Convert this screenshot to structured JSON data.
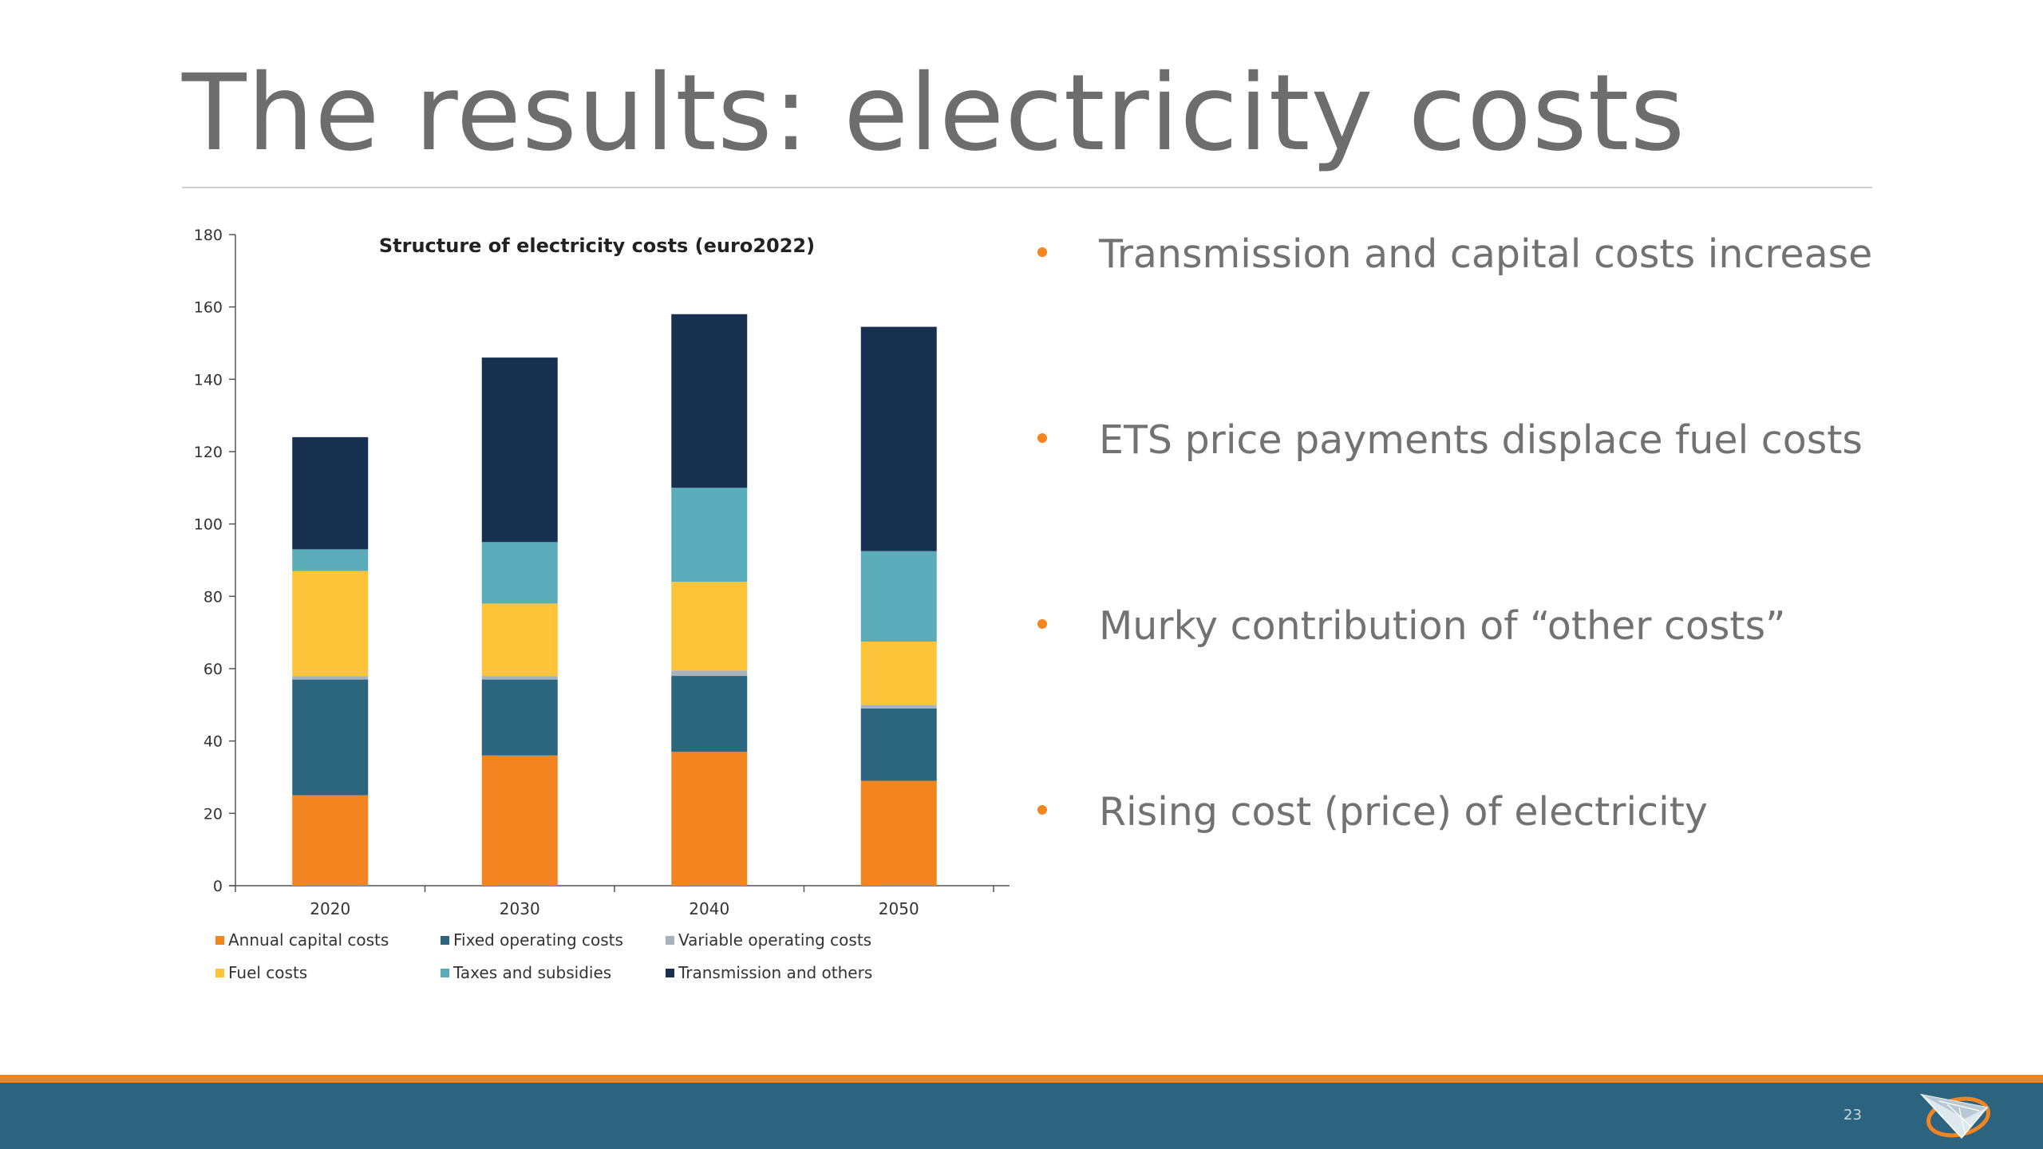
{
  "slide": {
    "title": "The results: electricity costs",
    "page_number": "23"
  },
  "bullets": [
    "Transmission and capital costs increase",
    "ETS price payments displace fuel costs",
    "Murky contribution of “other costs”",
    "Rising cost (price) of electricity"
  ],
  "colors": {
    "accent_orange": "#f28520",
    "footer_blue": "#2c6480"
  },
  "chart_data": {
    "type": "bar",
    "stacked": true,
    "title": "Structure of electricity costs (euro2022)",
    "xlabel": "",
    "ylabel": "",
    "categories": [
      "2020",
      "2030",
      "2040",
      "2050"
    ],
    "ylim": [
      0,
      180
    ],
    "yticks": [
      0,
      20,
      40,
      60,
      80,
      100,
      120,
      140,
      160,
      180
    ],
    "grid": false,
    "legend_position": "bottom",
    "series": [
      {
        "name": "Annual capital costs",
        "color": "#f28520",
        "values": [
          25,
          36,
          37,
          29
        ]
      },
      {
        "name": "Fixed operating costs",
        "color": "#2b657e",
        "values": [
          32,
          21,
          21,
          20
        ]
      },
      {
        "name": "Variable operating costs",
        "color": "#a9b3bb",
        "values": [
          1,
          1,
          1.5,
          1
        ]
      },
      {
        "name": "Fuel costs",
        "color": "#fdc43a",
        "values": [
          29,
          20,
          24.5,
          17.5
        ]
      },
      {
        "name": "Taxes and subsidies",
        "color": "#5bacba",
        "values": [
          6,
          17,
          26,
          25
        ]
      },
      {
        "name": "Transmission and others",
        "color": "#17304f",
        "values": [
          31,
          51,
          48,
          62
        ]
      }
    ]
  }
}
